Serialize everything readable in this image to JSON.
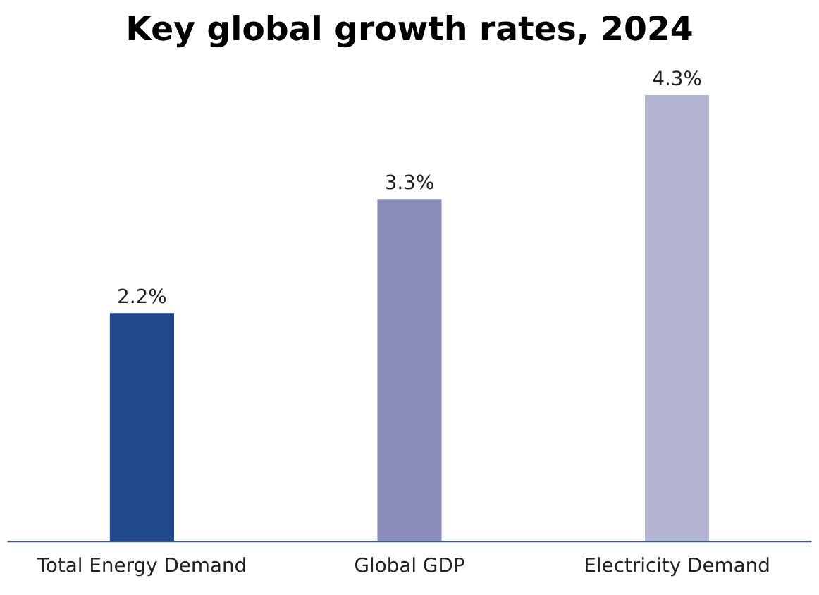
{
  "chart_data": {
    "type": "bar",
    "title": "Key global growth rates, 2024",
    "categories": [
      "Total Energy Demand",
      "Global GDP",
      "Electricity Demand"
    ],
    "values": [
      2.2,
      3.3,
      4.3
    ],
    "colors": [
      "#21488c",
      "#8b8cb9",
      "#b3b4d2"
    ],
    "value_labels": [
      "2.2%",
      "3.3%",
      "4.3%"
    ],
    "tick_labels": "x",
    "grid": false,
    "legend": false
  }
}
